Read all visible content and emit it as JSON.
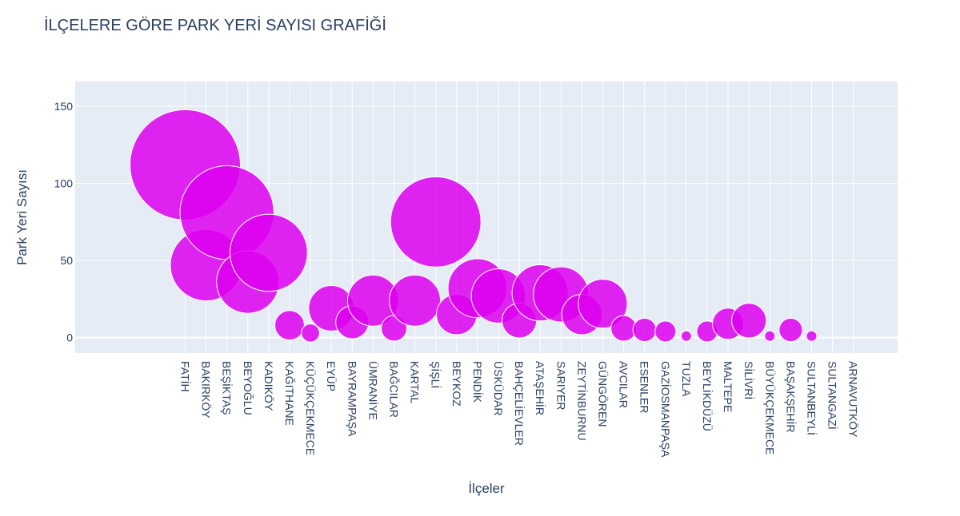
{
  "chart_data": {
    "type": "scatter",
    "title": "İLÇELERE GÖRE PARK YERİ SAYISI GRAFİĞİ",
    "xlabel": "İlçeler",
    "ylabel": "Park Yeri Sayısı",
    "ylim": [
      -10,
      166
    ],
    "yticks": [
      0,
      50,
      100,
      150
    ],
    "grid": true,
    "legend": "none",
    "marker_color": "#dd00ee",
    "plot_background": "#e5ecf6",
    "categories": [
      "FATİH",
      "BAKIRKÖY",
      "BEŞİKTAŞ",
      "BEYOĞLU",
      "KADIKÖY",
      "KAĞITHANE",
      "KÜÇÜKÇEKMECE",
      "EYÜP",
      "BAYRAMPAŞA",
      "ÜMRANİYE",
      "BAĞCILAR",
      "KARTAL",
      "ŞİŞLİ",
      "BEYKOZ",
      "PENDİK",
      "ÜSKÜDAR",
      "BAHÇELİEVLER",
      "ATAŞEHİR",
      "SARIYER",
      "ZEYTİNBURNU",
      "GÜNGÖREN",
      "AVCILAR",
      "ESENLER",
      "GAZİOSMANPAŞA",
      "TUZLA",
      "BEYLİKDÜZÜ",
      "MALTEPE",
      "SİLİVRİ",
      "BÜYÜKÇEKMECE",
      "BAŞAKŞEHİR",
      "SULTANBEYLİ",
      "SULTANGAZİ",
      "ARNAVUTKÖY"
    ],
    "values": [
      112,
      47,
      81,
      36,
      55,
      8,
      3,
      19,
      10,
      24,
      6,
      24,
      75,
      15,
      32,
      27,
      11,
      29,
      28,
      15,
      22,
      6,
      5,
      4,
      1,
      4,
      9,
      11,
      1,
      5,
      1,
      0,
      0
    ]
  }
}
